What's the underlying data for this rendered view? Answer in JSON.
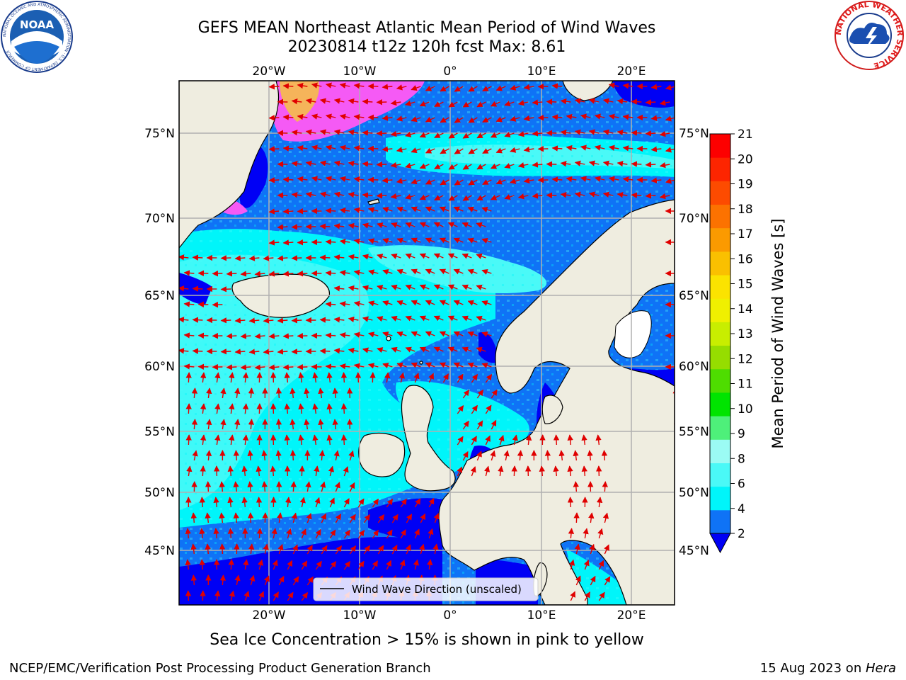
{
  "title_line1": "GEFS MEAN Northeast Atlantic Mean Period of Wind Waves",
  "title_line2": "20230814 t12z 120h fcst   Max: 8.61",
  "footnote": "Sea Ice Concentration > 15% is shown in pink to yellow",
  "credit": "NCEP/EMC/Verification Post Processing Product Generation Branch",
  "date_prefix": "15 Aug 2023 on ",
  "date_host": "Hera",
  "noaa_logo_text": "NOAA",
  "noaa_ring_text": "NATIONAL OCEANIC AND ATMOSPHERIC ADMINISTRATION · U.S. DEPARTMENT OF COMMERCE",
  "nws_ring_text": "NATIONAL WEATHER SERVICE",
  "legend_label": "Wind Wave Direction (unscaled)",
  "colorbar": {
    "label": "Mean Period of Wind Waves [s]",
    "ticks": [
      "2",
      "4",
      "6",
      "8",
      "9",
      "10",
      "11",
      "12",
      "13",
      "14",
      "15",
      "16",
      "17",
      "18",
      "19",
      "20",
      "21"
    ],
    "colors": [
      "#0f73f6",
      "#00f5fa",
      "#4af9f7",
      "#9bfbf4",
      "#4ef07a",
      "#00e400",
      "#4edd00",
      "#96dd00",
      "#c8ee00",
      "#f0f000",
      "#fbe300",
      "#fac000",
      "#fb9a00",
      "#fc7200",
      "#fd4b00",
      "#fd2500",
      "#fd0000"
    ],
    "extend_color": "#0000f5"
  },
  "axes": {
    "lon_labels": [
      "20°W",
      "10°W",
      "0°",
      "10°E",
      "20°E"
    ],
    "lat_labels": [
      "75°N",
      "70°N",
      "65°N",
      "60°N",
      "55°N",
      "50°N",
      "45°N"
    ]
  },
  "colors": {
    "land": "#efede0",
    "sea_ice_pink": "#f55af5",
    "sea_ice_orange": "#f5b45a",
    "arrow": "#e00000",
    "grid": "#b0b0b0"
  }
}
